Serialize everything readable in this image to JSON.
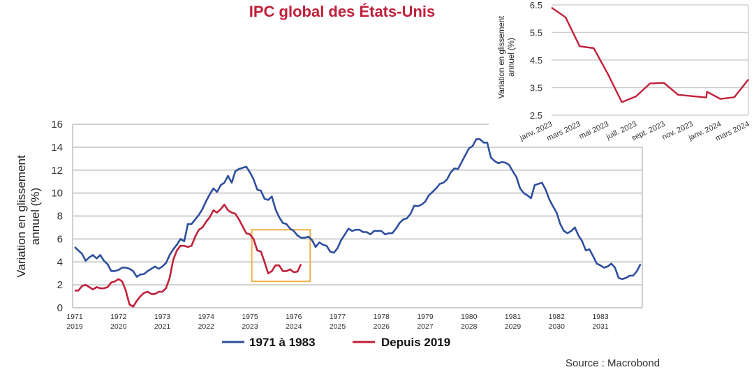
{
  "colors": {
    "blue": "#2e4f9e",
    "red": "#c0203a",
    "orange": "#eeb144",
    "grid": "#cfcfcf"
  },
  "chart_data": [
    {
      "type": "line",
      "title": "IPC global des États-Unis",
      "ylabel": "Variation en glissement annuel (%)",
      "ylim": [
        0,
        16
      ],
      "yticks": [
        "0",
        "2",
        "4",
        "6",
        "8",
        "10",
        "12",
        "14",
        "16"
      ],
      "xticks": [
        [
          "1971",
          "2019"
        ],
        [
          "1972",
          "2020"
        ],
        [
          "1973",
          "2021"
        ],
        [
          "1974",
          "2022"
        ],
        [
          "1975",
          "2023"
        ],
        [
          "1976",
          "2024"
        ],
        [
          "1977",
          "2025"
        ],
        [
          "1978",
          "2026"
        ],
        [
          "1979",
          "2027"
        ],
        [
          "1980",
          "2028"
        ],
        [
          "1981",
          "2029"
        ],
        [
          "1982",
          "2030"
        ],
        [
          "1983",
          "2031"
        ]
      ],
      "x_unit": "monthly, index 0 = Jan of first year",
      "grid": true,
      "legend_placement": "bottom-center",
      "highlight_box": {
        "x_months": [
          48.5,
          64.5
        ],
        "y": [
          2.3,
          6.8
        ]
      },
      "series": [
        {
          "name": "1971 à 1983",
          "color_key": "blue",
          "values": [
            5.3,
            5.0,
            4.7,
            4.1,
            4.4,
            4.6,
            4.3,
            4.6,
            4.1,
            3.8,
            3.2,
            3.2,
            3.3,
            3.5,
            3.5,
            3.4,
            3.2,
            2.7,
            2.9,
            2.95,
            3.2,
            3.4,
            3.6,
            3.4,
            3.6,
            3.9,
            4.6,
            5.1,
            5.5,
            6.0,
            5.8,
            7.3,
            7.3,
            7.7,
            8.1,
            8.6,
            9.3,
            9.9,
            10.4,
            10.1,
            10.7,
            10.9,
            11.5,
            10.9,
            11.9,
            12.1,
            12.2,
            12.3,
            11.8,
            11.2,
            10.3,
            10.2,
            9.5,
            9.4,
            9.7,
            8.6,
            7.9,
            7.4,
            7.3,
            6.9,
            6.7,
            6.3,
            6.1,
            6.1,
            6.2,
            5.9,
            5.3,
            5.7,
            5.5,
            5.4,
            4.9,
            4.8,
            5.2,
            5.9,
            6.4,
            6.9,
            6.7,
            6.8,
            6.8,
            6.6,
            6.6,
            6.4,
            6.7,
            6.7,
            6.7,
            6.4,
            6.5,
            6.5,
            6.9,
            7.4,
            7.7,
            7.8,
            8.2,
            8.9,
            8.85,
            9.0,
            9.25,
            9.8,
            10.1,
            10.4,
            10.8,
            10.9,
            11.2,
            11.8,
            12.15,
            12.1,
            12.7,
            13.3,
            13.9,
            14.1,
            14.7,
            14.7,
            14.4,
            14.4,
            13.1,
            12.8,
            12.6,
            12.7,
            12.65,
            12.45,
            11.9,
            11.4,
            10.4,
            10.0,
            9.8,
            9.55,
            10.7,
            10.8,
            10.9,
            10.3,
            9.45,
            8.85,
            8.3,
            7.3,
            6.7,
            6.5,
            6.7,
            7.0,
            6.3,
            5.8,
            5.0,
            5.1,
            4.5,
            3.85,
            3.7,
            3.5,
            3.6,
            3.85,
            3.5,
            2.6,
            2.5,
            2.6,
            2.8,
            2.8,
            3.2,
            3.8
          ]
        },
        {
          "name": "Depuis 2019",
          "color_key": "red",
          "values": [
            1.5,
            1.5,
            1.9,
            2.0,
            1.8,
            1.6,
            1.8,
            1.7,
            1.7,
            1.8,
            2.2,
            2.3,
            2.5,
            2.3,
            1.5,
            0.3,
            0.1,
            0.6,
            1.0,
            1.3,
            1.4,
            1.2,
            1.2,
            1.4,
            1.4,
            1.7,
            2.6,
            4.2,
            5.0,
            5.4,
            5.4,
            5.3,
            5.4,
            6.2,
            6.8,
            7.0,
            7.5,
            7.9,
            8.5,
            8.3,
            8.6,
            9.0,
            8.5,
            8.3,
            8.2,
            7.7,
            7.1,
            6.5,
            6.4,
            6.0,
            5.0,
            4.9,
            4.0,
            3.0,
            3.2,
            3.7,
            3.7,
            3.2,
            3.2,
            3.35,
            3.1,
            3.15,
            3.8
          ]
        }
      ]
    },
    {
      "type": "line",
      "ylabel": "Variation en glissement annuel (%)",
      "ylim": [
        2.5,
        6.5
      ],
      "yticks": [
        "6.5",
        "5.5",
        "4.5",
        "3.5",
        "2.5"
      ],
      "xticks": [
        "janv. 2023",
        "mars 2023",
        "mai 2023",
        "juill. 2023",
        "sept. 2023",
        "nov. 2023",
        "janv. 2024",
        "mars 2024"
      ],
      "grid": true,
      "series": [
        {
          "name": "Depuis 2019",
          "color_key": "red",
          "points": [
            [
              0,
              6.4
            ],
            [
              1,
              6.05
            ],
            [
              2,
              5.0
            ],
            [
              3,
              4.93
            ],
            [
              4,
              4.0
            ],
            [
              5,
              2.97
            ],
            [
              6,
              3.18
            ],
            [
              7,
              3.65
            ],
            [
              8,
              3.67
            ],
            [
              9,
              3.24
            ],
            [
              11,
              3.14
            ],
            [
              11.05,
              3.35
            ],
            [
              12,
              3.09
            ],
            [
              13,
              3.15
            ],
            [
              14,
              3.8
            ]
          ]
        }
      ]
    }
  ],
  "title": "IPC global des États-Unis",
  "ylabel_lines": [
    "Variation en glissement",
    "annuel (%)"
  ],
  "legend": [
    "1971 à 1983",
    "Depuis 2019"
  ],
  "source": "Source : Macrobond"
}
